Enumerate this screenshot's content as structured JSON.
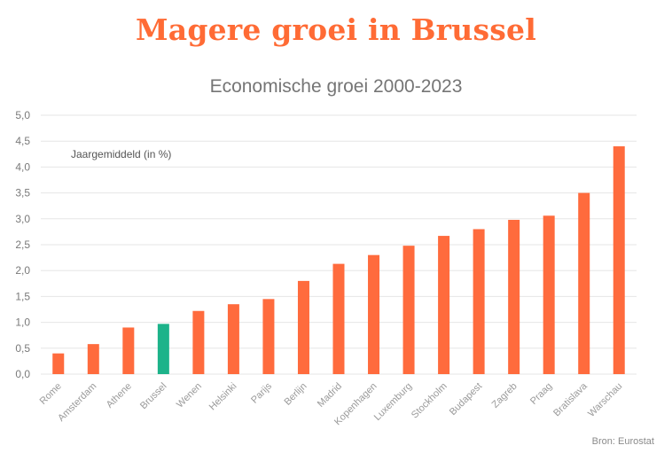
{
  "title": "Magere groei in Brussel",
  "subtitle": "Economische groei 2000-2023",
  "source": "Bron: Eurostat",
  "chart_data": {
    "type": "bar",
    "title": "Magere groei in Brussel",
    "subtitle": "Economische groei 2000-2023",
    "annotation": "Jaargemiddeld (in %)",
    "categories": [
      "Rome",
      "Amsterdam",
      "Athene",
      "Brussel",
      "Wenen",
      "Helsinki",
      "Parijs",
      "Berlijn",
      "Madrid",
      "Kopenhagen",
      "Luxemburg",
      "Stockholm",
      "Budapest",
      "Zagreb",
      "Praag",
      "Bratislava",
      "Warschau"
    ],
    "values": [
      0.4,
      0.58,
      0.9,
      0.97,
      1.22,
      1.35,
      1.45,
      1.8,
      2.13,
      2.3,
      2.48,
      2.67,
      2.8,
      2.98,
      3.06,
      3.5,
      4.4
    ],
    "highlight": "Brussel",
    "ylim": [
      0,
      5
    ],
    "yticks": [
      "0,0",
      "0,5",
      "1,0",
      "1,5",
      "2,0",
      "2,5",
      "3,0",
      "3,5",
      "4,0",
      "4,5",
      "5,0"
    ],
    "grid": true,
    "colors": {
      "bar": "#ff6b3d",
      "highlight": "#1db38a",
      "grid": "#e6e6e6",
      "title": "#ff6b35"
    }
  }
}
